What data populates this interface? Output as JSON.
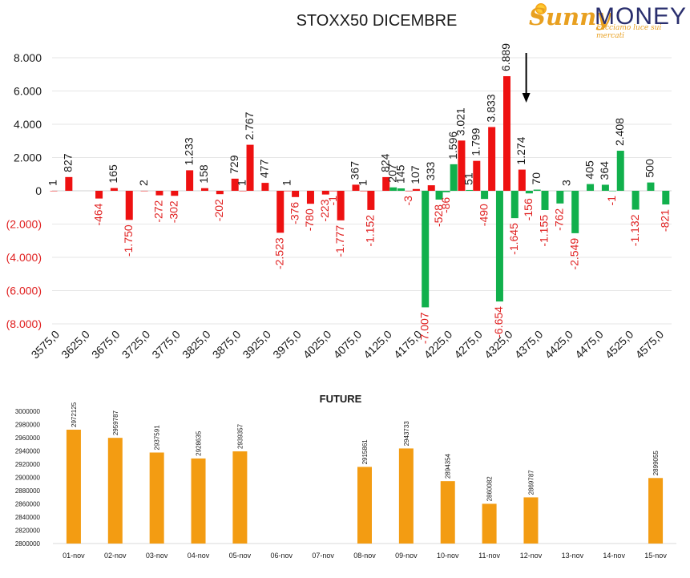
{
  "logo": {
    "brand_word": "Sunny",
    "brand_money": "MONEY",
    "tagline": "Facciamo luce sui mercati"
  },
  "colors": {
    "calls": "#ee1111",
    "puts": "#11b04c",
    "future": "#f39c12",
    "negative_label": "#e02020",
    "arrow": "#000000"
  },
  "chart_data": [
    {
      "type": "bar",
      "title": "STOXX50 DICEMBRE",
      "ylim": [
        -8000,
        8000
      ],
      "yticks": [
        "8.000",
        "6.000",
        "4.000",
        "2.000",
        "0",
        "(2.000)",
        "(4.000)",
        "(6.000)",
        "(8.000)"
      ],
      "ytick_values": [
        8000,
        6000,
        4000,
        2000,
        0,
        -2000,
        -4000,
        -6000,
        -8000
      ],
      "xticks": [
        "3575,0",
        "3625,0",
        "3675,0",
        "3725,0",
        "3775,0",
        "3825,0",
        "3875,0",
        "3925,0",
        "3975,0",
        "4025,0",
        "4075,0",
        "4125,0",
        "4175,0",
        "4225,0",
        "4275,0",
        "4325,0",
        "4375,0",
        "4425,0",
        "4475,0",
        "4525,0",
        "4575,0"
      ],
      "strike_min": 3575,
      "strike_step": 25,
      "bars": [
        {
          "strike": 3575,
          "series": "calls",
          "value": 1,
          "label": "1"
        },
        {
          "strike": 3600,
          "series": "calls",
          "value": 827,
          "label": "827"
        },
        {
          "strike": 3650,
          "series": "calls",
          "value": -464,
          "label": "-464"
        },
        {
          "strike": 3675,
          "series": "calls",
          "value": 165,
          "label": "165"
        },
        {
          "strike": 3700,
          "series": "calls",
          "value": -1750,
          "label": "-1.750"
        },
        {
          "strike": 3725,
          "series": "calls",
          "value": 2,
          "label": "2"
        },
        {
          "strike": 3750,
          "series": "calls",
          "value": -272,
          "label": "-272"
        },
        {
          "strike": 3775,
          "series": "calls",
          "value": -302,
          "label": "-302"
        },
        {
          "strike": 3800,
          "series": "calls",
          "value": 1233,
          "label": "1.233"
        },
        {
          "strike": 3825,
          "series": "calls",
          "value": 158,
          "label": "158"
        },
        {
          "strike": 3850,
          "series": "calls",
          "value": -202,
          "label": "-202"
        },
        {
          "strike": 3875,
          "series": "calls",
          "value": 729,
          "label": "729"
        },
        {
          "strike": 3888,
          "series": "calls",
          "value": 1,
          "label": "1"
        },
        {
          "strike": 3900,
          "series": "calls",
          "value": 2767,
          "label": "2.767"
        },
        {
          "strike": 3925,
          "series": "calls",
          "value": 477,
          "label": "477"
        },
        {
          "strike": 3950,
          "series": "calls",
          "value": -2523,
          "label": "-2.523"
        },
        {
          "strike": 3962,
          "series": "calls",
          "value": 1,
          "label": "1"
        },
        {
          "strike": 3975,
          "series": "calls",
          "value": -376,
          "label": "-376"
        },
        {
          "strike": 4000,
          "series": "calls",
          "value": -780,
          "label": "-780"
        },
        {
          "strike": 4025,
          "series": "calls",
          "value": -223,
          "label": "-223"
        },
        {
          "strike": 4038,
          "series": "calls",
          "value": -1,
          "label": "-1"
        },
        {
          "strike": 4050,
          "series": "calls",
          "value": -1777,
          "label": "-1.777"
        },
        {
          "strike": 4075,
          "series": "calls",
          "value": 367,
          "label": "367"
        },
        {
          "strike": 4088,
          "series": "calls",
          "value": 1,
          "label": "1"
        },
        {
          "strike": 4100,
          "series": "calls",
          "value": -1152,
          "label": "-1.152"
        },
        {
          "strike": 4125,
          "series": "calls",
          "value": 824,
          "label": "824"
        },
        {
          "strike": 4137,
          "series": "puts",
          "value": 207,
          "label": "207"
        },
        {
          "strike": 4150,
          "series": "puts",
          "value": 145,
          "label": "145"
        },
        {
          "strike": 4163,
          "series": "calls",
          "value": -3,
          "label": "-3"
        },
        {
          "strike": 4175,
          "series": "calls",
          "value": 107,
          "label": "107"
        },
        {
          "strike": 4190,
          "series": "puts",
          "value": -7007,
          "label": "-7.007"
        },
        {
          "strike": 4200,
          "series": "calls",
          "value": 333,
          "label": "333"
        },
        {
          "strike": 4213,
          "series": "puts",
          "value": -528,
          "label": "-528"
        },
        {
          "strike": 4225,
          "series": "puts",
          "value": -86,
          "label": "-86"
        },
        {
          "strike": 4237,
          "series": "puts",
          "value": 1596,
          "label": "1.596"
        },
        {
          "strike": 4250,
          "series": "calls",
          "value": 3021,
          "label": "3.021"
        },
        {
          "strike": 4263,
          "series": "puts",
          "value": 51,
          "label": "51"
        },
        {
          "strike": 4275,
          "series": "calls",
          "value": 1799,
          "label": "1.799"
        },
        {
          "strike": 4288,
          "series": "puts",
          "value": -490,
          "label": "-490"
        },
        {
          "strike": 4300,
          "series": "calls",
          "value": 3833,
          "label": "3.833"
        },
        {
          "strike": 4313,
          "series": "puts",
          "value": -6654,
          "label": "-6.654"
        },
        {
          "strike": 4325,
          "series": "calls",
          "value": 6889,
          "label": "6.889"
        },
        {
          "strike": 4338,
          "series": "puts",
          "value": -1645,
          "label": "-1.645"
        },
        {
          "strike": 4350,
          "series": "calls",
          "value": 1274,
          "label": "1.274"
        },
        {
          "strike": 4362,
          "series": "puts",
          "value": -156,
          "label": "-156"
        },
        {
          "strike": 4375,
          "series": "puts",
          "value": 70,
          "label": "70"
        },
        {
          "strike": 4388,
          "series": "puts",
          "value": -1155,
          "label": "-1.155"
        },
        {
          "strike": 4413,
          "series": "puts",
          "value": -762,
          "label": "-762"
        },
        {
          "strike": 4425,
          "series": "puts",
          "value": 3,
          "label": "3"
        },
        {
          "strike": 4438,
          "series": "puts",
          "value": -2549,
          "label": "-2.549"
        },
        {
          "strike": 4463,
          "series": "puts",
          "value": 405,
          "label": "405"
        },
        {
          "strike": 4488,
          "series": "puts",
          "value": 364,
          "label": "364"
        },
        {
          "strike": 4500,
          "series": "puts",
          "value": -1,
          "label": "-1"
        },
        {
          "strike": 4513,
          "series": "puts",
          "value": 2408,
          "label": "2.408"
        },
        {
          "strike": 4538,
          "series": "puts",
          "value": -1132,
          "label": "-1.132"
        },
        {
          "strike": 4563,
          "series": "puts",
          "value": 500,
          "label": "500"
        },
        {
          "strike": 4588,
          "series": "puts",
          "value": -821,
          "label": "-821"
        }
      ],
      "arrow_strike": 4357
    },
    {
      "type": "bar",
      "title": "FUTURE",
      "ylim": [
        2800000,
        3000000
      ],
      "yticks": [
        "3000000",
        "2980000",
        "2960000",
        "2940000",
        "2920000",
        "2900000",
        "2880000",
        "2860000",
        "2840000",
        "2820000",
        "2800000"
      ],
      "ytick_values": [
        3000000,
        2980000,
        2960000,
        2940000,
        2920000,
        2900000,
        2880000,
        2860000,
        2840000,
        2820000,
        2800000
      ],
      "categories": [
        "01-nov",
        "02-nov",
        "03-nov",
        "04-nov",
        "05-nov",
        "06-nov",
        "07-nov",
        "08-nov",
        "09-nov",
        "10-nov",
        "11-nov",
        "12-nov",
        "13-nov",
        "14-nov",
        "15-nov"
      ],
      "values": [
        2972125,
        2959787,
        2937591,
        2928635,
        2939357,
        null,
        null,
        2915861,
        2943733,
        2894354,
        2860082,
        2869787,
        null,
        null,
        2899055
      ],
      "labels": [
        "2972125",
        "2959787",
        "2937591",
        "2928635",
        "2939357",
        "",
        "",
        "2915861",
        "2943733",
        "2894354",
        "2860082",
        "2869787",
        "",
        "",
        "2899055"
      ]
    }
  ]
}
